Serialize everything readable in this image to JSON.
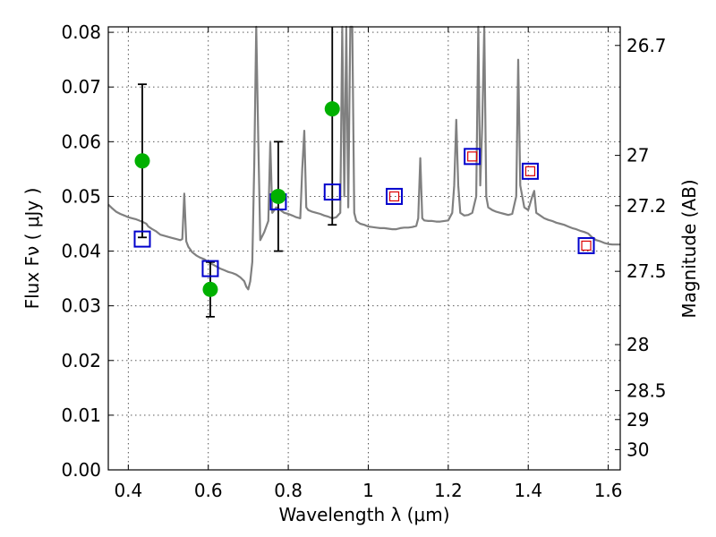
{
  "chart_data": {
    "type": "scatter",
    "xlabel": "Wavelength  λ (μm)",
    "ylabel": "Flux  Fν  ( μJy )",
    "ylabel_right": "Magnitude (AB)",
    "xlim": [
      0.35,
      1.63
    ],
    "ylim": [
      0.0,
      0.081
    ],
    "x_ticks": [
      {
        "value": 0.4,
        "label": "0.4"
      },
      {
        "value": 0.6,
        "label": "0.6"
      },
      {
        "value": 0.8,
        "label": "0.8"
      },
      {
        "value": 1.0,
        "label": "1"
      },
      {
        "value": 1.2,
        "label": "1.2"
      },
      {
        "value": 1.4,
        "label": "1.4"
      },
      {
        "value": 1.6,
        "label": "1.6"
      }
    ],
    "y_ticks": [
      {
        "value": 0.0,
        "label": "0.00"
      },
      {
        "value": 0.01,
        "label": "0.01"
      },
      {
        "value": 0.02,
        "label": "0.02"
      },
      {
        "value": 0.03,
        "label": "0.03"
      },
      {
        "value": 0.04,
        "label": "0.04"
      },
      {
        "value": 0.05,
        "label": "0.05"
      },
      {
        "value": 0.06,
        "label": "0.06"
      },
      {
        "value": 0.07,
        "label": "0.07"
      },
      {
        "value": 0.08,
        "label": "0.08"
      }
    ],
    "right_ticks": [
      {
        "flux": 0.0776,
        "label": "26.7"
      },
      {
        "flux": 0.0575,
        "label": "27"
      },
      {
        "flux": 0.0483,
        "label": "27.2"
      },
      {
        "flux": 0.0363,
        "label": "27.5"
      },
      {
        "flux": 0.0229,
        "label": "28"
      },
      {
        "flux": 0.0145,
        "label": "28.5"
      },
      {
        "flux": 0.0092,
        "label": "29"
      },
      {
        "flux": 0.0037,
        "label": "30"
      }
    ],
    "grid": true,
    "colors": {
      "spectrum": "#808080",
      "observed": "#00b000",
      "errorbar": "#000000",
      "model_box": "#0000cc",
      "model_inner": "#dd0000"
    },
    "series": [
      {
        "type": "line",
        "points": [
          [
            0.35,
            0.0485
          ],
          [
            0.36,
            0.0478
          ],
          [
            0.37,
            0.0472
          ],
          [
            0.38,
            0.0468
          ],
          [
            0.39,
            0.0465
          ],
          [
            0.4,
            0.0462
          ],
          [
            0.41,
            0.046
          ],
          [
            0.42,
            0.0458
          ],
          [
            0.43,
            0.0455
          ],
          [
            0.44,
            0.0452
          ],
          [
            0.445,
            0.045
          ],
          [
            0.45,
            0.0445
          ],
          [
            0.46,
            0.044
          ],
          [
            0.47,
            0.0436
          ],
          [
            0.48,
            0.043
          ],
          [
            0.49,
            0.0428
          ],
          [
            0.5,
            0.0426
          ],
          [
            0.51,
            0.0424
          ],
          [
            0.52,
            0.0422
          ],
          [
            0.53,
            0.042
          ],
          [
            0.535,
            0.0422
          ],
          [
            0.54,
            0.0505
          ],
          [
            0.545,
            0.0418
          ],
          [
            0.55,
            0.0408
          ],
          [
            0.56,
            0.0398
          ],
          [
            0.57,
            0.0392
          ],
          [
            0.58,
            0.0388
          ],
          [
            0.59,
            0.0385
          ],
          [
            0.6,
            0.038
          ],
          [
            0.61,
            0.0376
          ],
          [
            0.62,
            0.0372
          ],
          [
            0.63,
            0.0368
          ],
          [
            0.64,
            0.0365
          ],
          [
            0.65,
            0.0362
          ],
          [
            0.66,
            0.036
          ],
          [
            0.67,
            0.0357
          ],
          [
            0.68,
            0.0352
          ],
          [
            0.69,
            0.0345
          ],
          [
            0.695,
            0.0335
          ],
          [
            0.7,
            0.033
          ],
          [
            0.705,
            0.0345
          ],
          [
            0.71,
            0.038
          ],
          [
            0.715,
            0.056
          ],
          [
            0.72,
            0.081
          ],
          [
            0.725,
            0.06
          ],
          [
            0.73,
            0.042
          ],
          [
            0.74,
            0.0435
          ],
          [
            0.75,
            0.0455
          ],
          [
            0.755,
            0.06
          ],
          [
            0.76,
            0.047
          ],
          [
            0.77,
            0.048
          ],
          [
            0.78,
            0.0475
          ],
          [
            0.79,
            0.047
          ],
          [
            0.8,
            0.0468
          ],
          [
            0.81,
            0.0465
          ],
          [
            0.82,
            0.0462
          ],
          [
            0.83,
            0.046
          ],
          [
            0.835,
            0.055
          ],
          [
            0.84,
            0.062
          ],
          [
            0.845,
            0.048
          ],
          [
            0.85,
            0.0475
          ],
          [
            0.86,
            0.0472
          ],
          [
            0.87,
            0.047
          ],
          [
            0.88,
            0.0468
          ],
          [
            0.89,
            0.0465
          ],
          [
            0.9,
            0.0463
          ],
          [
            0.91,
            0.046
          ],
          [
            0.92,
            0.0462
          ],
          [
            0.93,
            0.047
          ],
          [
            0.935,
            0.081
          ],
          [
            0.94,
            0.05
          ],
          [
            0.945,
            0.081
          ],
          [
            0.95,
            0.048
          ],
          [
            0.955,
            0.081
          ],
          [
            0.96,
            0.081
          ],
          [
            0.965,
            0.047
          ],
          [
            0.97,
            0.0455
          ],
          [
            0.98,
            0.045
          ],
          [
            0.99,
            0.0448
          ],
          [
            1.0,
            0.0445
          ],
          [
            1.01,
            0.0444
          ],
          [
            1.02,
            0.0443
          ],
          [
            1.03,
            0.0442
          ],
          [
            1.04,
            0.0442
          ],
          [
            1.05,
            0.0441
          ],
          [
            1.06,
            0.044
          ],
          [
            1.07,
            0.044
          ],
          [
            1.08,
            0.0442
          ],
          [
            1.09,
            0.0443
          ],
          [
            1.1,
            0.0443
          ],
          [
            1.11,
            0.0444
          ],
          [
            1.12,
            0.0446
          ],
          [
            1.125,
            0.046
          ],
          [
            1.13,
            0.057
          ],
          [
            1.135,
            0.046
          ],
          [
            1.14,
            0.0456
          ],
          [
            1.15,
            0.0455
          ],
          [
            1.16,
            0.0455
          ],
          [
            1.17,
            0.0454
          ],
          [
            1.18,
            0.0454
          ],
          [
            1.19,
            0.0455
          ],
          [
            1.2,
            0.0456
          ],
          [
            1.21,
            0.047
          ],
          [
            1.215,
            0.052
          ],
          [
            1.22,
            0.064
          ],
          [
            1.225,
            0.052
          ],
          [
            1.23,
            0.047
          ],
          [
            1.24,
            0.0465
          ],
          [
            1.25,
            0.0466
          ],
          [
            1.26,
            0.047
          ],
          [
            1.27,
            0.05
          ],
          [
            1.275,
            0.081
          ],
          [
            1.28,
            0.052
          ],
          [
            1.285,
            0.063
          ],
          [
            1.29,
            0.081
          ],
          [
            1.295,
            0.05
          ],
          [
            1.3,
            0.048
          ],
          [
            1.31,
            0.0475
          ],
          [
            1.32,
            0.0472
          ],
          [
            1.33,
            0.047
          ],
          [
            1.34,
            0.0468
          ],
          [
            1.35,
            0.0466
          ],
          [
            1.36,
            0.0468
          ],
          [
            1.37,
            0.05
          ],
          [
            1.375,
            0.075
          ],
          [
            1.38,
            0.052
          ],
          [
            1.39,
            0.048
          ],
          [
            1.4,
            0.0475
          ],
          [
            1.41,
            0.05
          ],
          [
            1.415,
            0.051
          ],
          [
            1.42,
            0.047
          ],
          [
            1.43,
            0.0465
          ],
          [
            1.44,
            0.046
          ],
          [
            1.45,
            0.0457
          ],
          [
            1.46,
            0.0455
          ],
          [
            1.47,
            0.0452
          ],
          [
            1.48,
            0.045
          ],
          [
            1.49,
            0.0448
          ],
          [
            1.5,
            0.0445
          ],
          [
            1.51,
            0.0442
          ],
          [
            1.52,
            0.044
          ],
          [
            1.53,
            0.0437
          ],
          [
            1.54,
            0.0435
          ],
          [
            1.55,
            0.0432
          ],
          [
            1.56,
            0.0425
          ],
          [
            1.57,
            0.042
          ],
          [
            1.58,
            0.0418
          ],
          [
            1.59,
            0.0415
          ],
          [
            1.6,
            0.0413
          ],
          [
            1.61,
            0.0412
          ],
          [
            1.62,
            0.0412
          ],
          [
            1.63,
            0.0412
          ]
        ]
      },
      {
        "type": "scatter-errorbar",
        "points": [
          {
            "x": 0.435,
            "y": 0.0565,
            "ylow": 0.0425,
            "yhigh": 0.0705
          },
          {
            "x": 0.605,
            "y": 0.033,
            "ylow": 0.028,
            "yhigh": 0.038
          },
          {
            "x": 0.775,
            "y": 0.05,
            "ylow": 0.04,
            "yhigh": 0.06
          },
          {
            "x": 0.91,
            "y": 0.066,
            "ylow": 0.0448,
            "yhigh": 0.081
          }
        ]
      },
      {
        "type": "box-markers",
        "points": [
          {
            "x": 0.435,
            "y": 0.0422,
            "inner": false
          },
          {
            "x": 0.605,
            "y": 0.0368,
            "inner": false
          },
          {
            "x": 0.775,
            "y": 0.049,
            "inner": false
          },
          {
            "x": 0.91,
            "y": 0.0508,
            "inner": false
          },
          {
            "x": 1.065,
            "y": 0.05,
            "inner": true
          },
          {
            "x": 1.26,
            "y": 0.0573,
            "inner": true
          },
          {
            "x": 1.405,
            "y": 0.0546,
            "inner": true
          },
          {
            "x": 1.545,
            "y": 0.041,
            "inner": true
          }
        ]
      }
    ]
  }
}
